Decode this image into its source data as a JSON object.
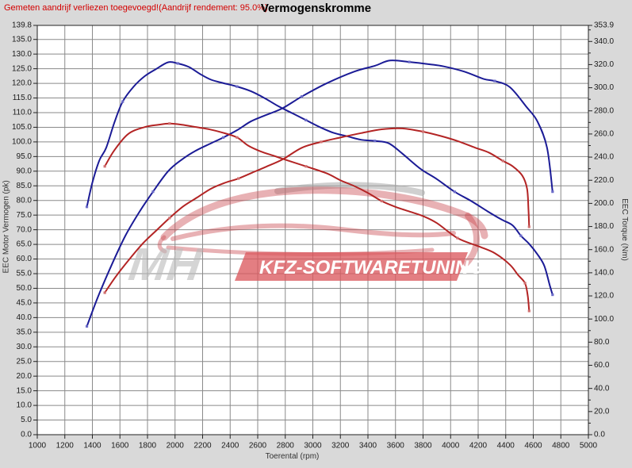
{
  "page": {
    "note": "Gemeten aandrijf verliezen toegevoegd!(Aandrijf rendement: 95.0%)",
    "note_color": "#d40000",
    "background_color": "#d9d9d9"
  },
  "chart_data": {
    "type": "line",
    "title": "Vermogenskromme",
    "xlabel": "Toerental (rpm)",
    "ylabel_left": "EEC Motor Vermogen (pk)",
    "ylabel_right": "EEC Torque (Nm)",
    "x_axis": {
      "min": 1000,
      "max": 5000,
      "tick_step": 200
    },
    "y_axis_left": {
      "min": 0.0,
      "max": 139.8,
      "grid_step": 5.0,
      "top_tick_label": "139.8"
    },
    "y_axis_right": {
      "min": 0.0,
      "max": 353.9,
      "label_step": 20.0,
      "minor_tick_step": 10.0,
      "top_tick_label": "353.9"
    },
    "grid": true,
    "legend": "none",
    "plot_bg": "#ffffff",
    "grid_color": "#8a8a8a",
    "border_color": "#222222",
    "tick_label_color": "#1a1a1a",
    "series": [
      {
        "name": "vermogen-blauw (pk)",
        "axis": "left",
        "color": "#1b1b96",
        "marker_color": "#6b6bc8",
        "points": [
          [
            1360,
            37
          ],
          [
            1440,
            47
          ],
          [
            1540,
            58
          ],
          [
            1640,
            68
          ],
          [
            1740,
            76
          ],
          [
            1840,
            83
          ],
          [
            1950,
            90
          ],
          [
            2050,
            94
          ],
          [
            2150,
            97
          ],
          [
            2260,
            99.5
          ],
          [
            2350,
            101.5
          ],
          [
            2450,
            104
          ],
          [
            2550,
            107
          ],
          [
            2650,
            109
          ],
          [
            2780,
            111.5
          ],
          [
            2920,
            115.5
          ],
          [
            3100,
            120
          ],
          [
            3300,
            124
          ],
          [
            3450,
            126
          ],
          [
            3560,
            127.8
          ],
          [
            3700,
            127.3
          ],
          [
            3850,
            126.5
          ],
          [
            3950,
            125.8
          ],
          [
            4100,
            124
          ],
          [
            4240,
            121.5
          ],
          [
            4320,
            120.8
          ],
          [
            4430,
            118.7
          ],
          [
            4550,
            112
          ],
          [
            4630,
            107
          ],
          [
            4700,
            98
          ],
          [
            4740,
            83
          ]
        ]
      },
      {
        "name": "torque-blauw (Nm)",
        "axis": "right",
        "color": "#1b1b96",
        "marker_color": "#6b6bc8",
        "points": [
          [
            1360,
            197
          ],
          [
            1400,
            218
          ],
          [
            1450,
            237
          ],
          [
            1500,
            248
          ],
          [
            1560,
            270
          ],
          [
            1620,
            288
          ],
          [
            1700,
            301
          ],
          [
            1780,
            310
          ],
          [
            1860,
            316
          ],
          [
            1950,
            322
          ],
          [
            2020,
            321
          ],
          [
            2100,
            318
          ],
          [
            2180,
            312
          ],
          [
            2260,
            307
          ],
          [
            2350,
            304
          ],
          [
            2450,
            301
          ],
          [
            2550,
            297
          ],
          [
            2650,
            291
          ],
          [
            2750,
            284
          ],
          [
            2850,
            278
          ],
          [
            2950,
            272
          ],
          [
            3050,
            266
          ],
          [
            3150,
            261
          ],
          [
            3250,
            258
          ],
          [
            3350,
            255
          ],
          [
            3450,
            254
          ],
          [
            3550,
            252
          ],
          [
            3650,
            243
          ],
          [
            3780,
            230
          ],
          [
            3900,
            221
          ],
          [
            4030,
            210
          ],
          [
            4150,
            202
          ],
          [
            4270,
            193
          ],
          [
            4370,
            186
          ],
          [
            4450,
            181
          ],
          [
            4510,
            172
          ],
          [
            4570,
            165
          ],
          [
            4630,
            156
          ],
          [
            4680,
            146
          ],
          [
            4720,
            129
          ],
          [
            4740,
            121
          ]
        ]
      },
      {
        "name": "vermogen-rood (pk)",
        "axis": "left",
        "color": "#b32424",
        "marker_color": "#d07070",
        "points": [
          [
            1490,
            48.5
          ],
          [
            1570,
            54
          ],
          [
            1670,
            60
          ],
          [
            1770,
            65.5
          ],
          [
            1870,
            70
          ],
          [
            1960,
            74
          ],
          [
            2060,
            78
          ],
          [
            2160,
            81
          ],
          [
            2260,
            84
          ],
          [
            2360,
            86
          ],
          [
            2460,
            87.5
          ],
          [
            2560,
            89.5
          ],
          [
            2660,
            91.5
          ],
          [
            2780,
            94
          ],
          [
            2920,
            98
          ],
          [
            3060,
            100
          ],
          [
            3200,
            101.5
          ],
          [
            3350,
            103
          ],
          [
            3500,
            104.3
          ],
          [
            3650,
            104.6
          ],
          [
            3800,
            103.5
          ],
          [
            3930,
            102
          ],
          [
            4050,
            100.3
          ],
          [
            4180,
            98
          ],
          [
            4280,
            96.3
          ],
          [
            4380,
            93.5
          ],
          [
            4450,
            91.7
          ],
          [
            4520,
            88.5
          ],
          [
            4555,
            84
          ],
          [
            4565,
            77
          ],
          [
            4570,
            71
          ]
        ]
      },
      {
        "name": "torque-rood (Nm)",
        "axis": "right",
        "color": "#b32424",
        "marker_color": "#d07070",
        "points": [
          [
            1490,
            232
          ],
          [
            1560,
            246
          ],
          [
            1660,
            260
          ],
          [
            1780,
            266
          ],
          [
            1880,
            268
          ],
          [
            1960,
            269
          ],
          [
            2050,
            268
          ],
          [
            2150,
            266
          ],
          [
            2250,
            264
          ],
          [
            2350,
            261
          ],
          [
            2450,
            257
          ],
          [
            2530,
            250
          ],
          [
            2620,
            245
          ],
          [
            2720,
            241
          ],
          [
            2820,
            237
          ],
          [
            2950,
            232
          ],
          [
            3100,
            226
          ],
          [
            3200,
            220
          ],
          [
            3300,
            215
          ],
          [
            3400,
            209
          ],
          [
            3500,
            202
          ],
          [
            3600,
            197
          ],
          [
            3700,
            193
          ],
          [
            3800,
            189
          ],
          [
            3900,
            183
          ],
          [
            4050,
            170
          ],
          [
            4200,
            163
          ],
          [
            4320,
            157
          ],
          [
            4430,
            147
          ],
          [
            4490,
            138
          ],
          [
            4540,
            131
          ],
          [
            4560,
            120
          ],
          [
            4570,
            107
          ]
        ]
      }
    ],
    "watermark": {
      "mh_text": "MH",
      "banner_text": "KFZ-SOFTWARETUNING",
      "car_color": "rgba(201,70,76,0.42)",
      "accent_gray": "rgba(170,170,170,0.55)",
      "mh_color": "rgba(188,188,188,0.62)",
      "banner_color": "rgba(219,90,95,0.78)",
      "banner_text_color": "#ffffff"
    }
  }
}
